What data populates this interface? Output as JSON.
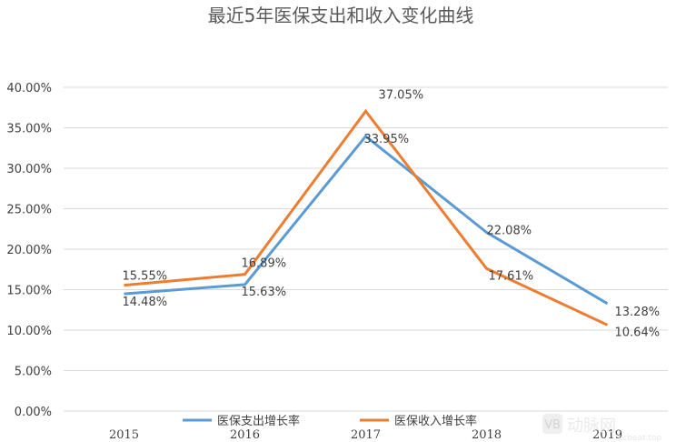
{
  "chart_data": {
    "type": "line",
    "title": "最近5年医保支出和收入变化曲线",
    "categories": [
      "2015",
      "2016",
      "2017",
      "2018",
      "2019"
    ],
    "ylim": [
      0,
      40
    ],
    "yticks": [
      "0.00%",
      "5.00%",
      "10.00%",
      "15.00%",
      "20.00%",
      "25.00%",
      "30.00%",
      "35.00%",
      "40.00%"
    ],
    "grid": true,
    "legend_position": "bottom",
    "series": [
      {
        "name": "医保支出增长率",
        "color": "#5b9bd5",
        "values": [
          14.48,
          15.63,
          33.95,
          22.08,
          13.28
        ],
        "labels": [
          "14.48%",
          "15.63%",
          "33.95%",
          "22.08%",
          "13.28%"
        ]
      },
      {
        "name": "医保收入增长率",
        "color": "#ed7d31",
        "values": [
          15.55,
          16.89,
          37.05,
          17.61,
          10.64
        ],
        "labels": [
          "15.55%",
          "16.89%",
          "37.05%",
          "17.61%",
          "10.64%"
        ]
      }
    ]
  },
  "watermark": {
    "logo_icon": "vb-logo-icon",
    "text": "动脉网",
    "subtext": "vcbeat.top"
  }
}
